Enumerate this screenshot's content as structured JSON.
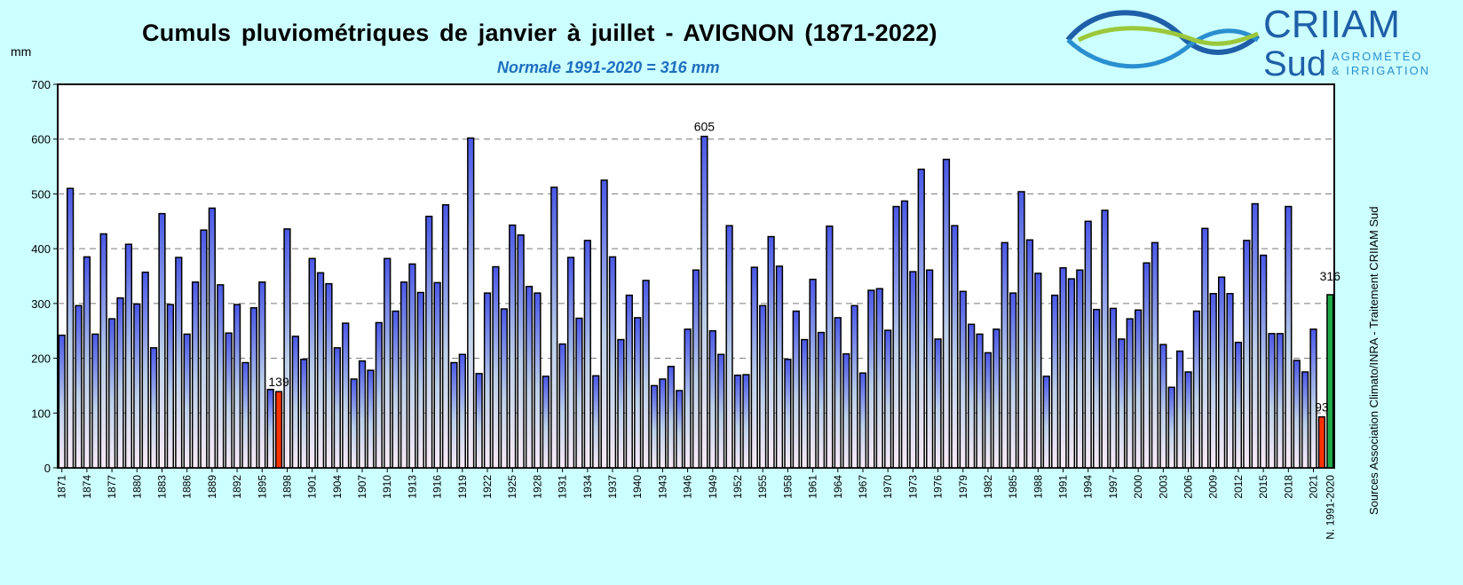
{
  "chart_data": {
    "type": "bar",
    "title": "Cumuls pluviométriques de janvier à juillet - AVIGNON (1871-2022)",
    "subtitle": "Normale 1991-2020 = 316 mm",
    "ylabel": "mm",
    "ylim": [
      0,
      700
    ],
    "yticks": [
      0,
      100,
      200,
      300,
      400,
      500,
      600,
      700
    ],
    "grid": true,
    "first_year": 1871,
    "values": [
      242,
      510,
      296,
      385,
      244,
      427,
      272,
      310,
      408,
      299,
      357,
      219,
      464,
      298,
      384,
      244,
      339,
      434,
      474,
      334,
      246,
      298,
      192,
      292,
      339,
      143,
      139,
      436,
      240,
      198,
      382,
      356,
      336,
      219,
      264,
      162,
      195,
      178,
      265,
      382,
      286,
      339,
      372,
      320,
      459,
      338,
      480,
      192,
      207,
      602,
      172,
      319,
      367,
      290,
      443,
      425,
      331,
      319,
      167,
      512,
      226,
      384,
      273,
      415,
      168,
      525,
      385,
      234,
      315,
      274,
      342,
      150,
      162,
      185,
      141,
      253,
      361,
      605,
      250,
      207,
      442,
      169,
      170,
      366,
      296,
      422,
      368,
      198,
      286,
      234,
      344,
      247,
      441,
      274,
      208,
      296,
      173,
      324,
      327,
      251,
      477,
      487,
      358,
      545,
      361,
      235,
      563,
      442,
      322,
      262,
      244,
      210,
      253,
      411,
      319,
      504,
      416,
      355,
      167,
      315,
      365,
      345,
      361,
      450,
      289,
      470,
      291,
      235,
      272,
      288,
      374,
      411,
      225,
      147,
      213,
      175,
      286,
      437,
      318,
      348,
      318,
      229,
      415,
      482,
      388,
      245,
      245,
      477,
      196,
      175,
      253,
      93
    ],
    "highlight_red_years": [
      1897,
      2022
    ],
    "normal": {
      "label": "N. 1991-2020",
      "value": 316
    },
    "data_labels": [
      {
        "year": 1897,
        "text": "139"
      },
      {
        "year": 1948,
        "text": "605"
      },
      {
        "year": 2022,
        "text": "93"
      },
      {
        "year": "normal",
        "text": "316"
      }
    ],
    "colors": {
      "bar_top": "#4a58e8",
      "bar_bottom": "#f8eaf6",
      "red": "#ff3300",
      "green": "#1faa4a",
      "background": "#ccffff"
    }
  },
  "logo": {
    "name": "CRIIAM",
    "sub": "Sud",
    "tagline1": "AGROMÉTÉO",
    "tagline2": "& IRRIGATION"
  },
  "source": "Sources Association Climato/INRA - Traitement CRIIAM Sud"
}
